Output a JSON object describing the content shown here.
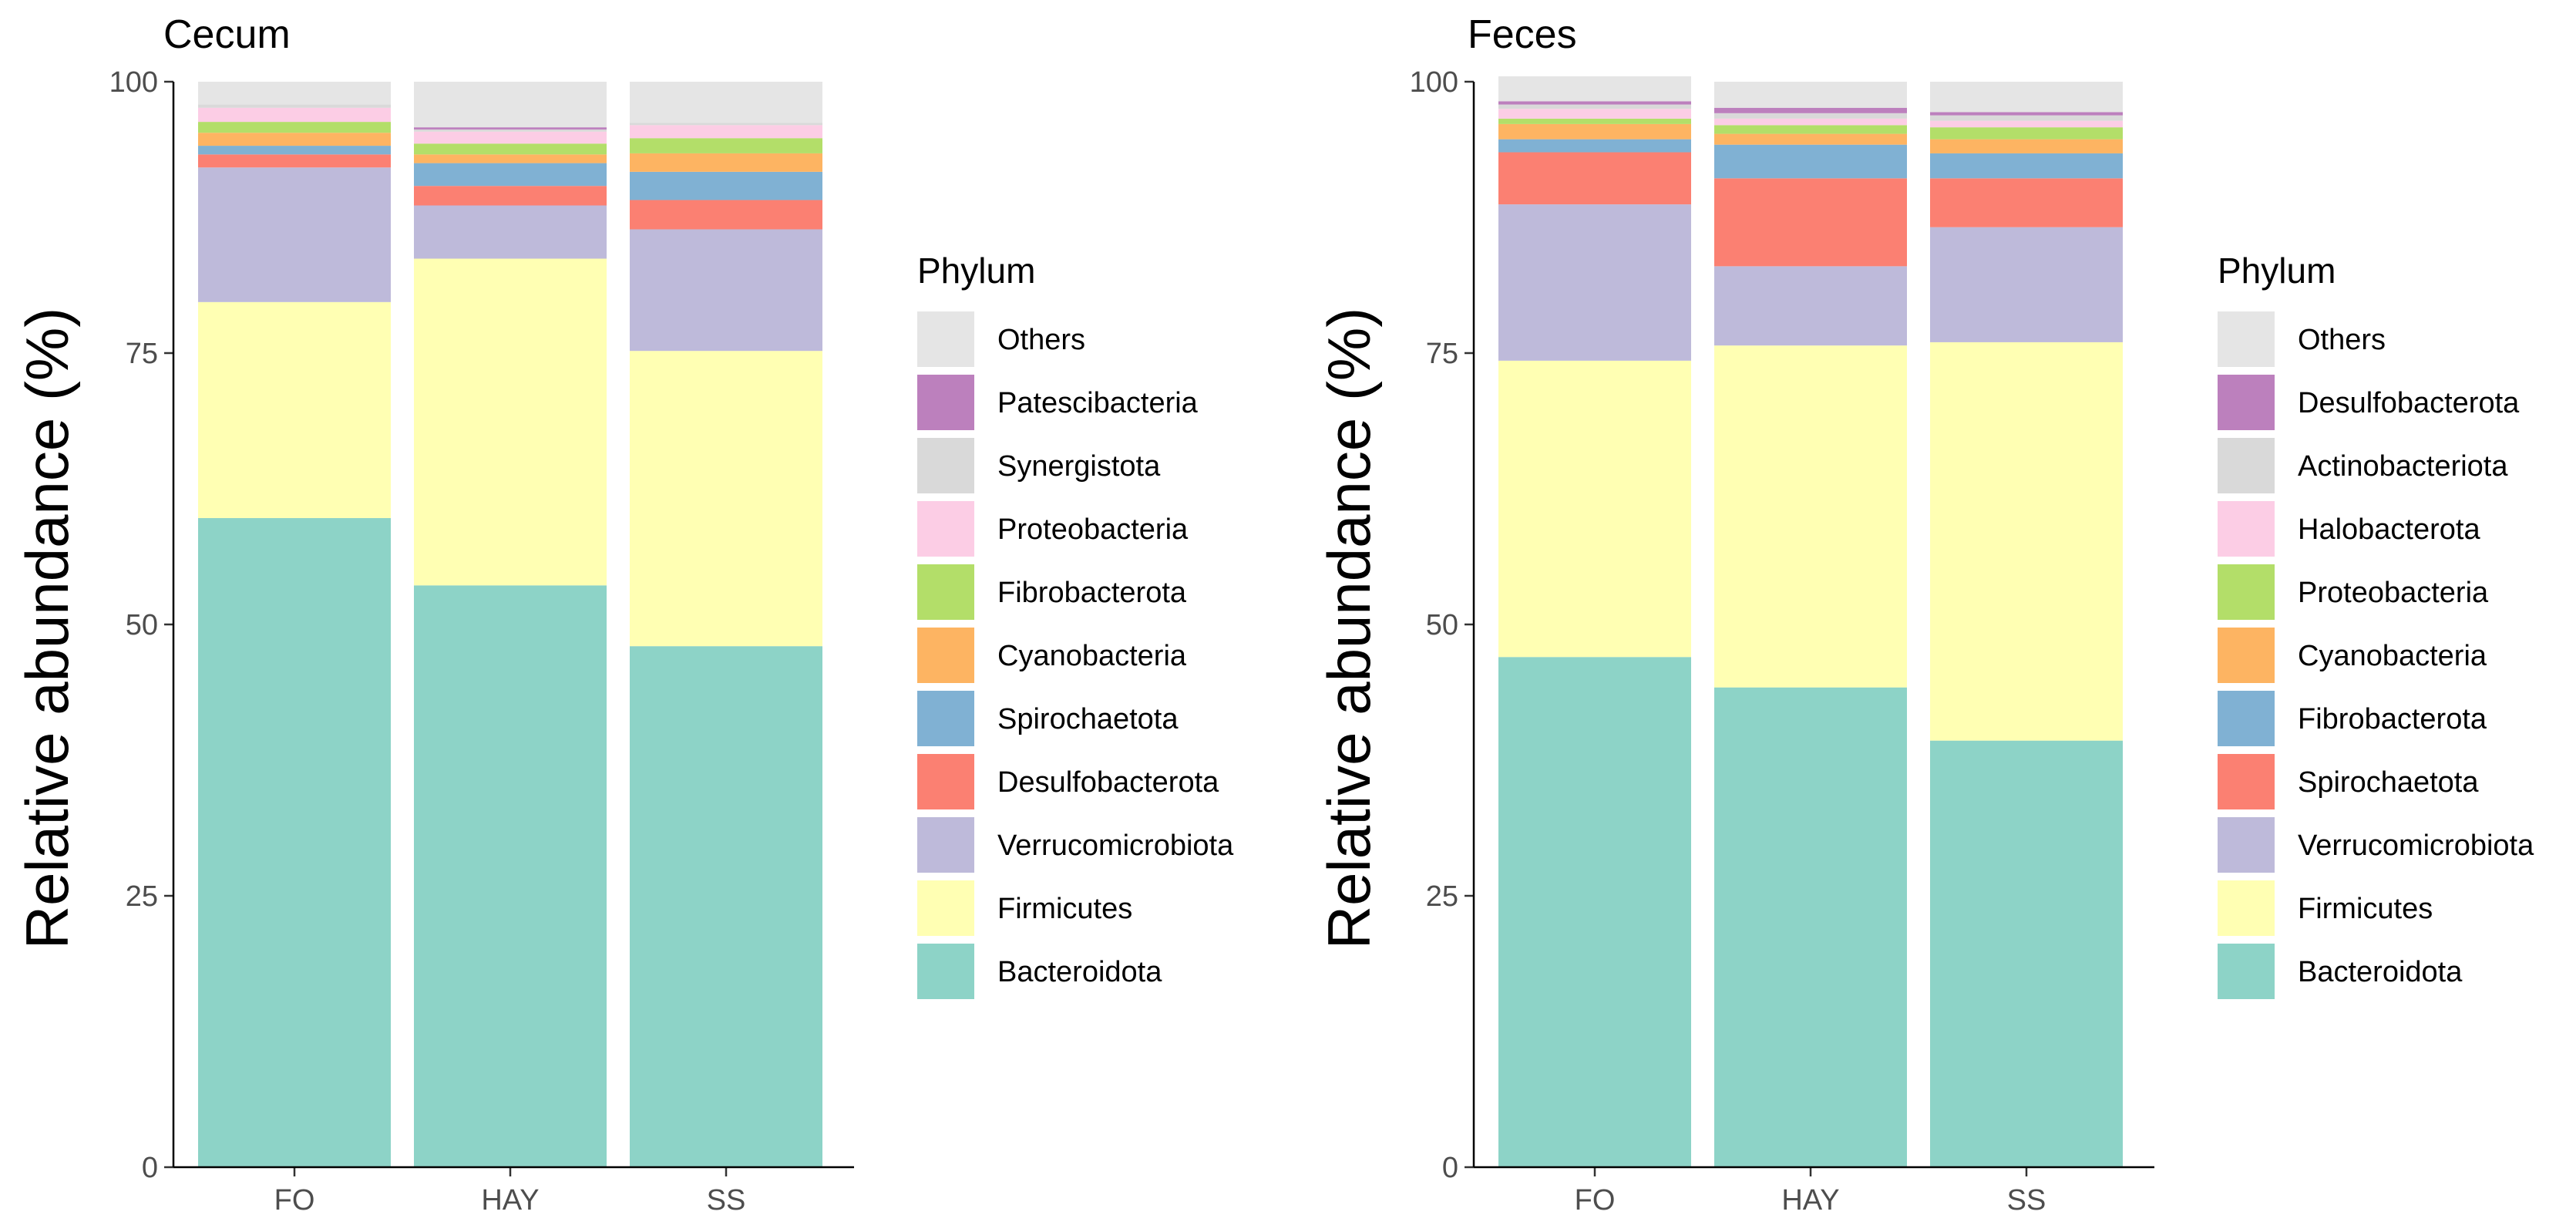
{
  "chart_data": [
    {
      "type": "bar",
      "stacked": true,
      "title": "Cecum",
      "xlabel": "",
      "ylabel": "Relative abundance (%)",
      "ylim": [
        0,
        100
      ],
      "yticks": [
        "0",
        "25",
        "50",
        "75",
        "100"
      ],
      "categories": [
        "FO",
        "HAY",
        "SS"
      ],
      "legend_title": "Phylum",
      "legend_position": "right",
      "series": [
        {
          "name": "Bacteroidota",
          "color": "#8DD3C7",
          "values": [
            59.8,
            53.6,
            48.0
          ]
        },
        {
          "name": "Firmicutes",
          "color": "#FFFFB3",
          "values": [
            19.9,
            30.1,
            27.2
          ]
        },
        {
          "name": "Verrucomicrobiota",
          "color": "#BEBADA",
          "values": [
            12.4,
            4.9,
            11.2
          ]
        },
        {
          "name": "Desulfobacterota",
          "color": "#FB8072",
          "values": [
            1.2,
            1.8,
            2.7
          ]
        },
        {
          "name": "Spirochaetota",
          "color": "#80B1D3",
          "values": [
            0.8,
            2.1,
            2.6
          ]
        },
        {
          "name": "Cyanobacteria",
          "color": "#FDB462",
          "values": [
            1.2,
            0.8,
            1.7
          ]
        },
        {
          "name": "Fibrobacterota",
          "color": "#B3DE69",
          "values": [
            1.0,
            1.0,
            1.4
          ]
        },
        {
          "name": "Proteobacteria",
          "color": "#FCCDE5",
          "values": [
            1.3,
            1.1,
            1.2
          ]
        },
        {
          "name": "Synergistota",
          "color": "#D9D9D9",
          "values": [
            0.3,
            0.2,
            0.2
          ]
        },
        {
          "name": "Patescibacteria",
          "color": "#BC80BD",
          "values": [
            0.0,
            0.2,
            0.0
          ]
        },
        {
          "name": "Others",
          "color": "#E5E5E5",
          "values": [
            2.1,
            4.2,
            3.8
          ]
        }
      ]
    },
    {
      "type": "bar",
      "stacked": true,
      "title": "Feces",
      "xlabel": "",
      "ylabel": "Relative abundance (%)",
      "ylim": [
        0,
        100
      ],
      "yticks": [
        "0",
        "25",
        "50",
        "75",
        "100"
      ],
      "categories": [
        "FO",
        "HAY",
        "SS"
      ],
      "legend_title": "Phylum",
      "legend_position": "right",
      "series": [
        {
          "name": "Bacteroidota",
          "color": "#8DD3C7",
          "values": [
            47.0,
            44.2,
            39.3
          ]
        },
        {
          "name": "Firmicutes",
          "color": "#FFFFB3",
          "values": [
            27.3,
            31.5,
            36.7
          ]
        },
        {
          "name": "Verrucomicrobiota",
          "color": "#BEBADA",
          "values": [
            14.4,
            7.3,
            10.6
          ]
        },
        {
          "name": "Spirochaetota",
          "color": "#FB8072",
          "values": [
            4.8,
            8.1,
            4.5
          ]
        },
        {
          "name": "Fibrobacterota",
          "color": "#80B1D3",
          "values": [
            1.2,
            3.1,
            2.3
          ]
        },
        {
          "name": "Cyanobacteria",
          "color": "#FDB462",
          "values": [
            1.4,
            1.0,
            1.3
          ]
        },
        {
          "name": "Proteobacteria",
          "color": "#B3DE69",
          "values": [
            0.5,
            0.8,
            1.1
          ]
        },
        {
          "name": "Halobacterota",
          "color": "#FCCDE5",
          "values": [
            0.9,
            0.6,
            0.6
          ]
        },
        {
          "name": "Actinobacteriota",
          "color": "#D9D9D9",
          "values": [
            0.4,
            0.5,
            0.5
          ]
        },
        {
          "name": "Desulfobacterota",
          "color": "#BC80BD",
          "values": [
            0.3,
            0.5,
            0.3
          ]
        },
        {
          "name": "Others",
          "color": "#E5E5E5",
          "values": [
            2.3,
            2.4,
            2.8
          ]
        }
      ]
    }
  ]
}
